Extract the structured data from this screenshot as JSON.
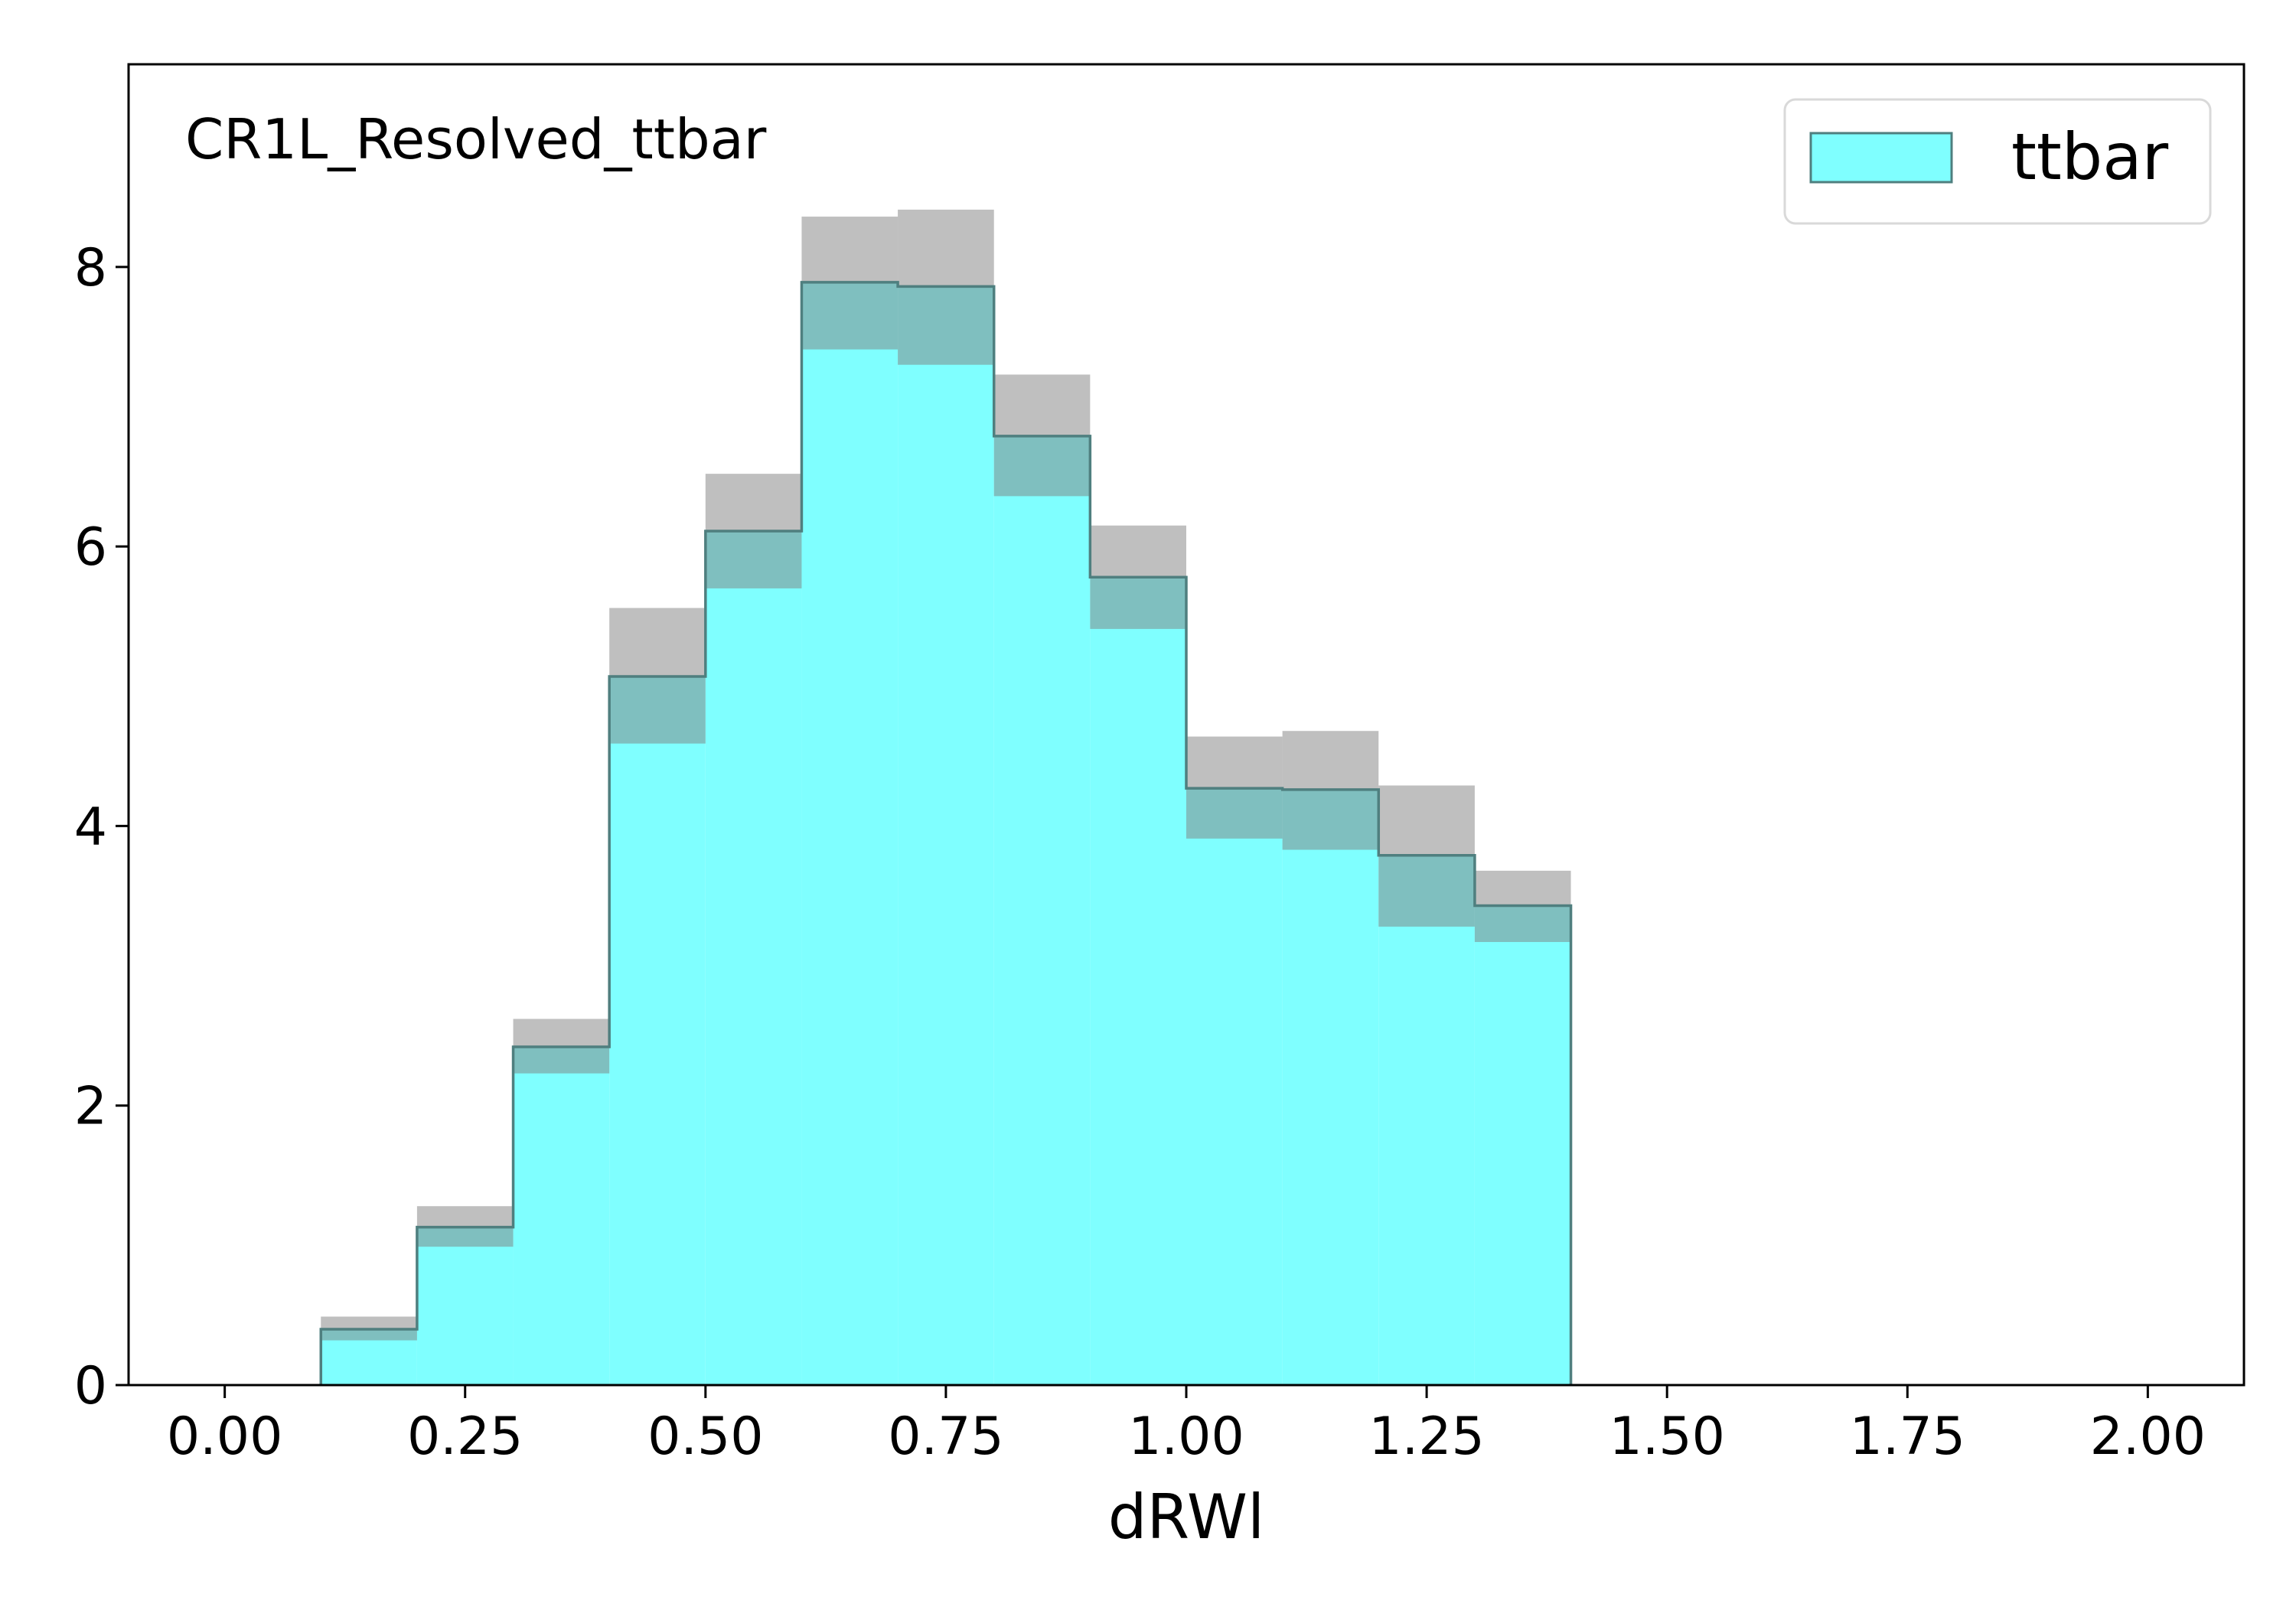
{
  "chart_data": {
    "type": "bar",
    "region_label": "CR1L_Resolved_ttbar",
    "xlabel": "dRWl",
    "ylabel": "",
    "xlim": [
      -0.1,
      2.1
    ],
    "ylim": [
      0,
      9.45
    ],
    "x_ticks": [
      "0.00",
      "0.25",
      "0.50",
      "0.75",
      "1.00",
      "1.25",
      "1.50",
      "1.75",
      "2.00"
    ],
    "y_ticks": [
      "0",
      "2",
      "4",
      "6",
      "8"
    ],
    "bin_edges": [
      0.1,
      0.2,
      0.3,
      0.4,
      0.5,
      0.6,
      0.7,
      0.8,
      0.9,
      1.0,
      1.1,
      1.2,
      1.3,
      1.4
    ],
    "series": [
      {
        "name": "ttbar",
        "color": "#7fffff",
        "edge_color": "#4f7f7f",
        "values": [
          0.4,
          1.13,
          2.42,
          5.07,
          6.11,
          7.89,
          7.86,
          6.79,
          5.78,
          4.27,
          4.26,
          3.79,
          3.43
        ],
        "uncertainty_low": [
          0.32,
          0.99,
          2.23,
          4.59,
          5.7,
          7.41,
          7.3,
          6.36,
          5.41,
          3.91,
          3.83,
          3.28,
          3.17
        ],
        "uncertainty_high": [
          0.49,
          1.28,
          2.62,
          5.56,
          6.52,
          8.36,
          8.41,
          7.23,
          6.15,
          4.64,
          4.68,
          4.29,
          3.68
        ]
      }
    ],
    "uncertainty_color": "#808080",
    "legend": {
      "position": "top-right",
      "entries": [
        "ttbar"
      ]
    },
    "grid": false
  }
}
